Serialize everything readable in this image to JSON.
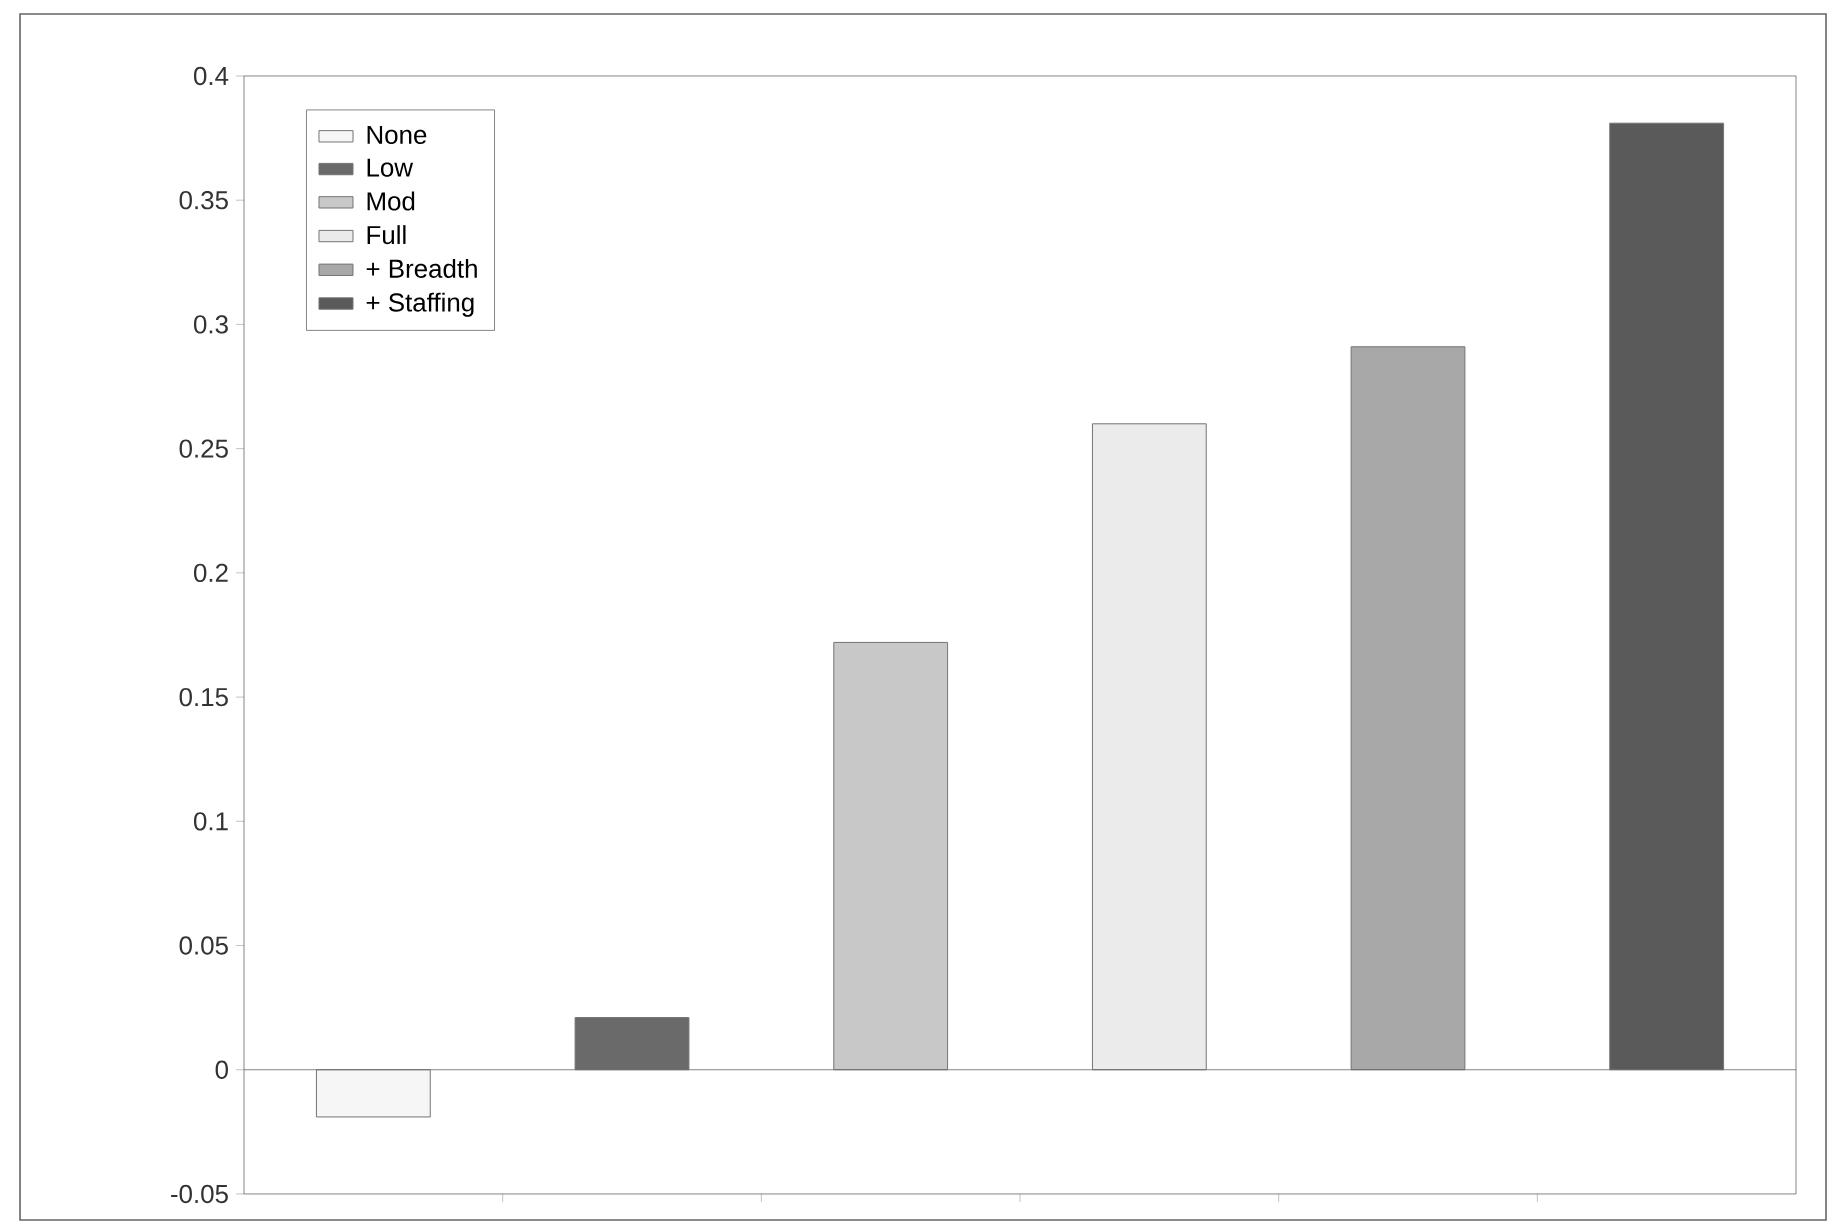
{
  "chart_data": {
    "type": "bar",
    "categories": [
      null,
      null,
      null,
      null,
      null,
      null
    ],
    "series": [
      {
        "name": "None",
        "color": "#f6f6f6",
        "values": [
          -0.019,
          null,
          null,
          null,
          null,
          null
        ]
      },
      {
        "name": "Low",
        "color": "#6a6a6a",
        "values": [
          null,
          0.021,
          null,
          null,
          null,
          null
        ]
      },
      {
        "name": "Mod",
        "color": "#c8c8c8",
        "values": [
          null,
          null,
          0.172,
          null,
          null,
          null
        ]
      },
      {
        "name": "Full",
        "color": "#ebebeb",
        "values": [
          null,
          null,
          null,
          0.26,
          null,
          null
        ]
      },
      {
        "name": "+ Breadth",
        "color": "#a8a8a8",
        "values": [
          null,
          null,
          null,
          null,
          0.291,
          null
        ]
      },
      {
        "name": "+ Staffing",
        "color": "#5a5a5a",
        "values": [
          null,
          null,
          null,
          null,
          null,
          0.381
        ]
      }
    ],
    "ylim": [
      -0.05,
      0.4
    ],
    "yticks": [
      -0.05,
      0,
      0.05,
      0.1,
      0.15,
      0.2,
      0.25,
      0.3,
      0.35,
      0.4
    ],
    "legend": "top left"
  }
}
